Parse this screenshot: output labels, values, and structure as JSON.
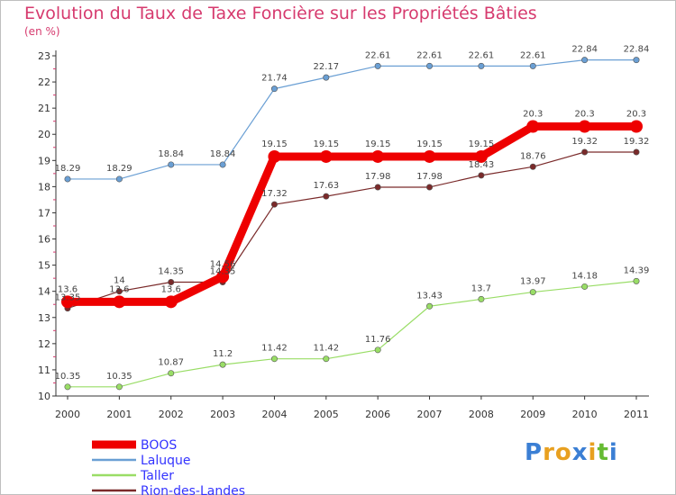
{
  "chart_data": {
    "type": "line",
    "title": "Evolution du Taux de Taxe Foncière sur les Propriétés Bâties",
    "ylabel": "(en %)",
    "xlabel": "",
    "ylim": [
      10,
      23
    ],
    "yticks": [
      "10",
      "11",
      "12",
      "13",
      "14",
      "15",
      "16",
      "17",
      "18",
      "19",
      "20",
      "21",
      "22",
      "23"
    ],
    "categories": [
      "2000",
      "2001",
      "2002",
      "2003",
      "2004",
      "2005",
      "2006",
      "2007",
      "2008",
      "2009",
      "2010",
      "2011"
    ],
    "series": [
      {
        "name": "BOOS",
        "color": "#ee0000",
        "values": [
          13.6,
          13.6,
          13.6,
          14.56,
          19.15,
          19.15,
          19.15,
          19.15,
          19.15,
          20.3,
          20.3,
          20.3
        ],
        "labels": [
          "13.6",
          "13.6",
          "13.6",
          "14.56",
          "19.15",
          "19.15",
          "19.15",
          "19.15",
          "19.15",
          "20.3",
          "20.3",
          "20.3"
        ]
      },
      {
        "name": "Laluque",
        "color": "#6a9fd4",
        "values": [
          18.29,
          18.29,
          18.84,
          18.84,
          21.74,
          22.17,
          22.61,
          22.61,
          22.61,
          22.61,
          22.84,
          22.84
        ],
        "labels": [
          "18.29",
          "18.29",
          "18.84",
          "18.84",
          "21.74",
          "22.17",
          "22.61",
          "22.61",
          "22.61",
          "22.61",
          "22.84",
          "22.84"
        ]
      },
      {
        "name": "Taller",
        "color": "#99dd66",
        "values": [
          10.35,
          10.35,
          10.87,
          11.2,
          11.42,
          11.42,
          11.76,
          13.43,
          13.7,
          13.97,
          14.18,
          14.39
        ],
        "labels": [
          "10.35",
          "10.35",
          "10.87",
          "11.2",
          "11.42",
          "11.42",
          "11.76",
          "13.43",
          "13.7",
          "13.97",
          "14.18",
          "14.39"
        ]
      },
      {
        "name": "Rion-des-Landes",
        "color": "#7a2a2a",
        "values": [
          13.35,
          14.0,
          14.35,
          14.35,
          17.32,
          17.63,
          17.98,
          17.98,
          18.43,
          18.76,
          19.32,
          19.32
        ],
        "labels": [
          "13.35",
          "14",
          "14.35",
          "14.35",
          "17.32",
          "17.63",
          "17.98",
          "17.98",
          "18.43",
          "18.76",
          "19.32",
          "19.32"
        ]
      }
    ],
    "grid": false,
    "legend": "bottom-left"
  },
  "logo": {
    "letters": [
      "P",
      "r",
      "o",
      "x",
      "i",
      "t",
      "i"
    ],
    "colors": [
      "#3b7fd4",
      "#e8a020",
      "#e8a020",
      "#3b7fd4",
      "#e8a020",
      "#66bb33",
      "#3b7fd4"
    ]
  }
}
